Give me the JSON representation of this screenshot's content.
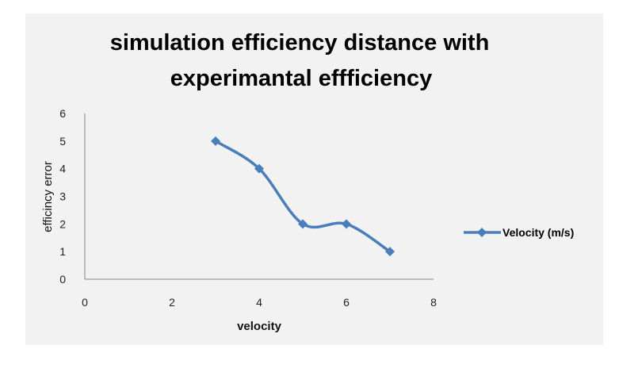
{
  "chart_data": {
    "type": "line",
    "title_lines": [
      "simulation efficiency  distance with",
      "experimantal  effficiency"
    ],
    "xlabel": "velocity",
    "ylabel": "efficincy error",
    "xlim": [
      0,
      8
    ],
    "ylim": [
      0,
      6
    ],
    "xticks": [
      0,
      2,
      4,
      6,
      8
    ],
    "yticks": [
      0,
      1,
      2,
      3,
      4,
      5,
      6
    ],
    "grid": false,
    "smooth": true,
    "legend_position": "right",
    "series": [
      {
        "name": "Velocity (m/s)",
        "color": "#4a7ebb",
        "marker": "diamond",
        "x": [
          3,
          4,
          5,
          6,
          7
        ],
        "y": [
          5,
          4,
          2,
          2,
          1
        ]
      }
    ]
  },
  "colors": {
    "frame_background": "#f2f2f2",
    "axis_line": "#868686",
    "series": "#4a7ebb"
  }
}
